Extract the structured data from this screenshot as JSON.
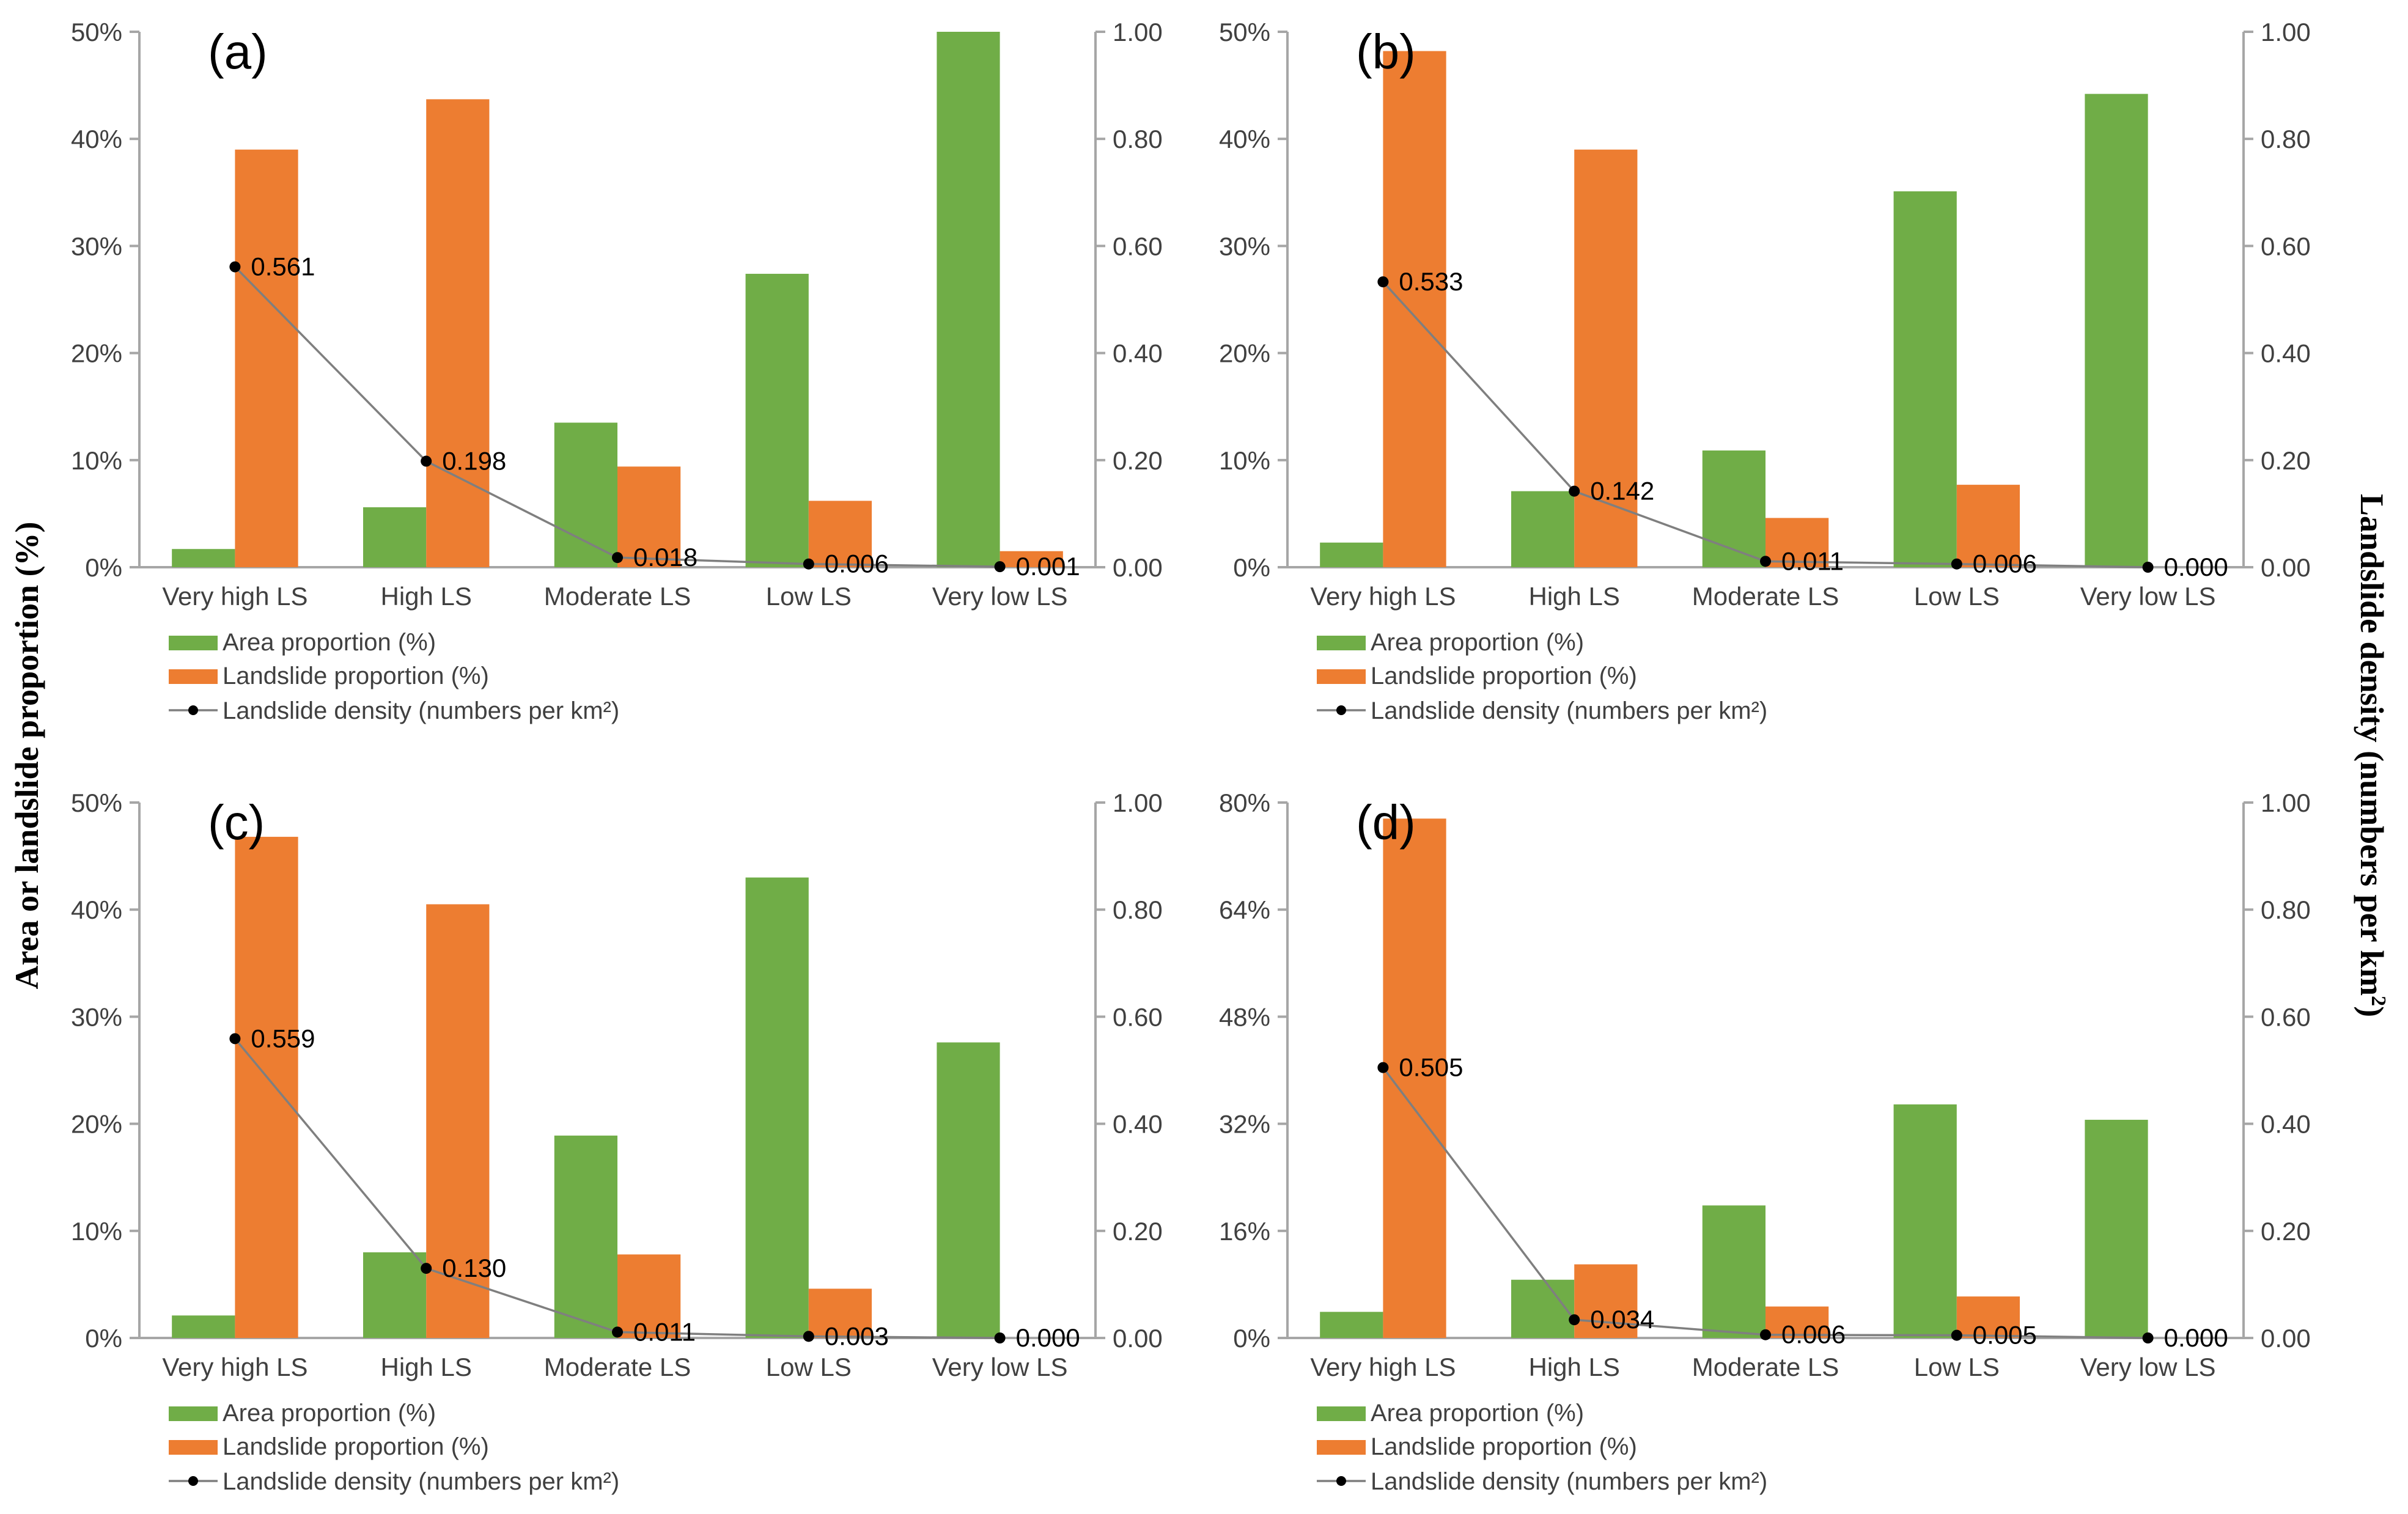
{
  "figure": {
    "left_axis_label": "Area or landslide proportion (%)",
    "right_axis_label": "Landslide density (numbers per km",
    "right_axis_sup": "2",
    "right_axis_close": ")"
  },
  "legend": {
    "area": "Area proportion (%)",
    "landslide": "Landslide proportion (%)",
    "density": "Landslide density (numbers per km²)"
  },
  "colors": {
    "area": "#70ad47",
    "landslide": "#ed7d31",
    "density": "#000000",
    "line": "#7f7f7f",
    "axis": "#a6a6a6"
  },
  "chart_data": [
    {
      "type": "bar",
      "panel": "(a)",
      "categories": [
        "Very high LS",
        "High LS",
        "Moderate LS",
        "Low LS",
        "Very low LS"
      ],
      "series": [
        {
          "name": "Area proportion (%)",
          "values": [
            1.7,
            5.6,
            13.5,
            27.4,
            50.0
          ]
        },
        {
          "name": "Landslide proportion (%)",
          "values": [
            39.0,
            43.7,
            9.4,
            6.2,
            1.5
          ]
        },
        {
          "name": "Landslide density (numbers per km²)",
          "type": "line",
          "axis": "right",
          "values": [
            0.561,
            0.198,
            0.018,
            0.006,
            0.001
          ],
          "labels": [
            "0.561",
            "0.198",
            "0.018",
            "0.006",
            "0.001"
          ]
        }
      ],
      "ylim": [
        0,
        50
      ],
      "y_ticks": [
        "0%",
        "10%",
        "20%",
        "30%",
        "40%",
        "50%"
      ],
      "y2lim": [
        0,
        1
      ],
      "y2_ticks": [
        "0.00",
        "0.20",
        "0.40",
        "0.60",
        "0.80",
        "1.00"
      ]
    },
    {
      "type": "bar",
      "panel": "(b)",
      "categories": [
        "Very high LS",
        "High LS",
        "Moderate LS",
        "Low LS",
        "Very low LS"
      ],
      "series": [
        {
          "name": "Area proportion (%)",
          "values": [
            2.3,
            7.1,
            10.9,
            35.1,
            44.2
          ]
        },
        {
          "name": "Landslide proportion (%)",
          "values": [
            48.2,
            39.0,
            4.6,
            7.7,
            0.0
          ]
        },
        {
          "name": "Landslide density (numbers per km²)",
          "type": "line",
          "axis": "right",
          "values": [
            0.533,
            0.142,
            0.011,
            0.006,
            0.0
          ],
          "labels": [
            "0.533",
            "0.142",
            "0.011",
            "0.006",
            "0.000"
          ]
        }
      ],
      "ylim": [
        0,
        50
      ],
      "y_ticks": [
        "0%",
        "10%",
        "20%",
        "30%",
        "40%",
        "50%"
      ],
      "y2lim": [
        0,
        1
      ],
      "y2_ticks": [
        "0.00",
        "0.20",
        "0.40",
        "0.60",
        "0.80",
        "1.00"
      ]
    },
    {
      "type": "bar",
      "panel": "(c)",
      "categories": [
        "Very high LS",
        "High LS",
        "Moderate LS",
        "Low LS",
        "Very low LS"
      ],
      "series": [
        {
          "name": "Area proportion (%)",
          "values": [
            2.1,
            8.0,
            18.9,
            43.0,
            27.6
          ]
        },
        {
          "name": "Landslide proportion (%)",
          "values": [
            46.8,
            40.5,
            7.8,
            4.6,
            0.0
          ]
        },
        {
          "name": "Landslide density (numbers per km²)",
          "type": "line",
          "axis": "right",
          "values": [
            0.559,
            0.13,
            0.011,
            0.003,
            0.0
          ],
          "labels": [
            "0.559",
            "0.130",
            "0.011",
            "0.003",
            "0.000"
          ]
        }
      ],
      "ylim": [
        0,
        50
      ],
      "y_ticks": [
        "0%",
        "10%",
        "20%",
        "30%",
        "40%",
        "50%"
      ],
      "y2lim": [
        0,
        1
      ],
      "y2_ticks": [
        "0.00",
        "0.20",
        "0.40",
        "0.60",
        "0.80",
        "1.00"
      ]
    },
    {
      "type": "bar",
      "panel": "(d)",
      "categories": [
        "Very high LS",
        "High LS",
        "Moderate LS",
        "Low LS",
        "Very low LS"
      ],
      "series": [
        {
          "name": "Area proportion (%)",
          "values": [
            3.9,
            8.7,
            19.8,
            34.9,
            32.6
          ]
        },
        {
          "name": "Landslide proportion (%)",
          "values": [
            77.6,
            11.0,
            4.7,
            6.2,
            0.0
          ]
        },
        {
          "name": "Landslide density (numbers per km²)",
          "type": "line",
          "axis": "right",
          "values": [
            0.505,
            0.034,
            0.006,
            0.005,
            0.0
          ],
          "labels": [
            "0.505",
            "0.034",
            "0.006",
            "0.005",
            "0.000"
          ]
        }
      ],
      "ylim": [
        0,
        80
      ],
      "y_ticks": [
        "0%",
        "16%",
        "32%",
        "48%",
        "64%",
        "80%"
      ],
      "y2lim": [
        0,
        1
      ],
      "y2_ticks": [
        "0.00",
        "0.20",
        "0.40",
        "0.60",
        "0.80",
        "1.00"
      ]
    }
  ]
}
